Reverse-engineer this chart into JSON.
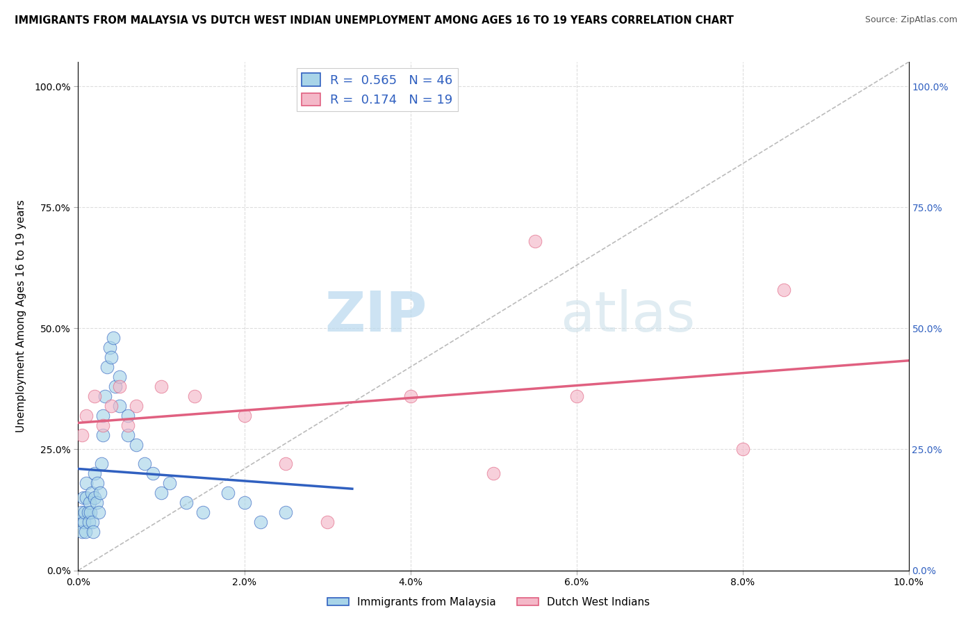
{
  "title": "IMMIGRANTS FROM MALAYSIA VS DUTCH WEST INDIAN UNEMPLOYMENT AMONG AGES 16 TO 19 YEARS CORRELATION CHART",
  "source": "Source: ZipAtlas.com",
  "ylabel": "Unemployment Among Ages 16 to 19 years",
  "xlim": [
    0.0,
    0.1
  ],
  "ylim": [
    0.0,
    1.05
  ],
  "x_ticks": [
    0.0,
    0.02,
    0.04,
    0.06,
    0.08,
    0.1
  ],
  "y_ticks": [
    0.0,
    0.25,
    0.5,
    0.75,
    1.0
  ],
  "legend_labels": [
    "Immigrants from Malaysia",
    "Dutch West Indians"
  ],
  "legend_R": [
    "R =  0.565",
    "R =  0.174"
  ],
  "legend_N": [
    "N = 46",
    "N = 19"
  ],
  "color_blue": "#a8d4e8",
  "color_pink": "#f4b8c8",
  "line_color_blue": "#3060c0",
  "line_color_pink": "#e06080",
  "diagonal_color": "#bbbbbb",
  "watermark_zip": "ZIP",
  "watermark_atlas": "atlas",
  "title_fontsize": 10.5,
  "blue_scatter_x": [
    0.0002,
    0.0004,
    0.0005,
    0.0006,
    0.0007,
    0.0008,
    0.0009,
    0.001,
    0.001,
    0.0012,
    0.0013,
    0.0014,
    0.0015,
    0.0016,
    0.0017,
    0.0018,
    0.002,
    0.002,
    0.0022,
    0.0023,
    0.0025,
    0.0026,
    0.0028,
    0.003,
    0.003,
    0.0032,
    0.0035,
    0.0038,
    0.004,
    0.0042,
    0.0045,
    0.005,
    0.005,
    0.006,
    0.006,
    0.007,
    0.008,
    0.009,
    0.01,
    0.011,
    0.013,
    0.015,
    0.018,
    0.02,
    0.022,
    0.025
  ],
  "blue_scatter_y": [
    0.1,
    0.12,
    0.08,
    0.15,
    0.1,
    0.12,
    0.08,
    0.15,
    0.18,
    0.12,
    0.1,
    0.14,
    0.12,
    0.16,
    0.1,
    0.08,
    0.15,
    0.2,
    0.14,
    0.18,
    0.12,
    0.16,
    0.22,
    0.28,
    0.32,
    0.36,
    0.42,
    0.46,
    0.44,
    0.48,
    0.38,
    0.4,
    0.34,
    0.32,
    0.28,
    0.26,
    0.22,
    0.2,
    0.16,
    0.18,
    0.14,
    0.12,
    0.16,
    0.14,
    0.1,
    0.12
  ],
  "pink_scatter_x": [
    0.0005,
    0.001,
    0.002,
    0.003,
    0.004,
    0.005,
    0.006,
    0.007,
    0.01,
    0.014,
    0.02,
    0.025,
    0.03,
    0.04,
    0.05,
    0.055,
    0.06,
    0.08,
    0.085
  ],
  "pink_scatter_y": [
    0.28,
    0.32,
    0.36,
    0.3,
    0.34,
    0.38,
    0.3,
    0.34,
    0.38,
    0.36,
    0.32,
    0.22,
    0.1,
    0.36,
    0.2,
    0.68,
    0.36,
    0.25,
    0.58
  ]
}
